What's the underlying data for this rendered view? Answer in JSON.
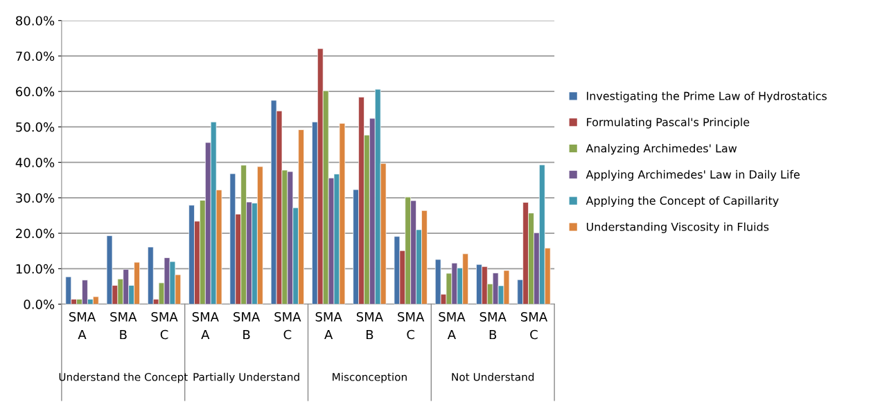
{
  "chart_data": {
    "type": "bar",
    "categories": [
      "SMA A",
      "SMA B",
      "SMA C",
      "SMA A",
      "SMA B",
      "SMA C",
      "SMA A",
      "SMA B",
      "SMA C",
      "SMA A",
      "SMA B",
      "SMA C"
    ],
    "annotations": [
      "Understand the Concept",
      "Partially Understand",
      "Misconception",
      "Not Understand"
    ],
    "series": [
      {
        "name": "Investigating the Prime Law of Hydrostatics",
        "color": "#4472a8",
        "values": [
          7.7,
          19.3,
          16.1,
          27.9,
          36.8,
          57.5,
          51.4,
          32.3,
          19.1,
          12.6,
          11.2,
          6.9
        ]
      },
      {
        "name": "Formulating Pascal's Principle",
        "color": "#aa4644",
        "values": [
          1.4,
          5.3,
          1.4,
          23.4,
          25.4,
          54.5,
          72.1,
          58.4,
          15.1,
          2.8,
          10.6,
          28.7
        ]
      },
      {
        "name": "Analyzing Archimedes' Law",
        "color": "#89a54e",
        "values": [
          1.4,
          7.1,
          6.0,
          29.3,
          39.2,
          37.8,
          60.2,
          47.7,
          30.2,
          8.7,
          5.7,
          25.7
        ]
      },
      {
        "name": "Applying Archimedes' Law in Daily Life",
        "color": "#71588f",
        "values": [
          6.8,
          9.8,
          13.1,
          45.6,
          28.8,
          37.4,
          35.6,
          52.4,
          29.2,
          11.6,
          8.8,
          20.1
        ]
      },
      {
        "name": "Applying the Concept of Capillarity",
        "color": "#4198af",
        "values": [
          1.4,
          5.3,
          12.0,
          51.4,
          28.5,
          27.2,
          36.7,
          60.6,
          21.0,
          10.2,
          5.2,
          39.3
        ]
      },
      {
        "name": "Understanding Viscosity in Fluids",
        "color": "#db843d",
        "values": [
          2.1,
          11.8,
          8.3,
          32.2,
          38.8,
          49.2,
          51.0,
          39.7,
          26.4,
          14.2,
          9.5,
          15.8
        ]
      }
    ],
    "ylim": [
      0,
      80
    ],
    "yticks": [
      {
        "value": 0,
        "label": "0.0%"
      },
      {
        "value": 10,
        "label": "10.0%"
      },
      {
        "value": 20,
        "label": "20.0%"
      },
      {
        "value": 30,
        "label": "30.0%"
      },
      {
        "value": 40,
        "label": "40.0%"
      },
      {
        "value": 50,
        "label": "50.0%"
      },
      {
        "value": 60,
        "label": "60.0%"
      },
      {
        "value": 70,
        "label": "70.0%"
      },
      {
        "value": 80,
        "label": "80.0%"
      }
    ],
    "grid": "y",
    "legend": "right"
  }
}
